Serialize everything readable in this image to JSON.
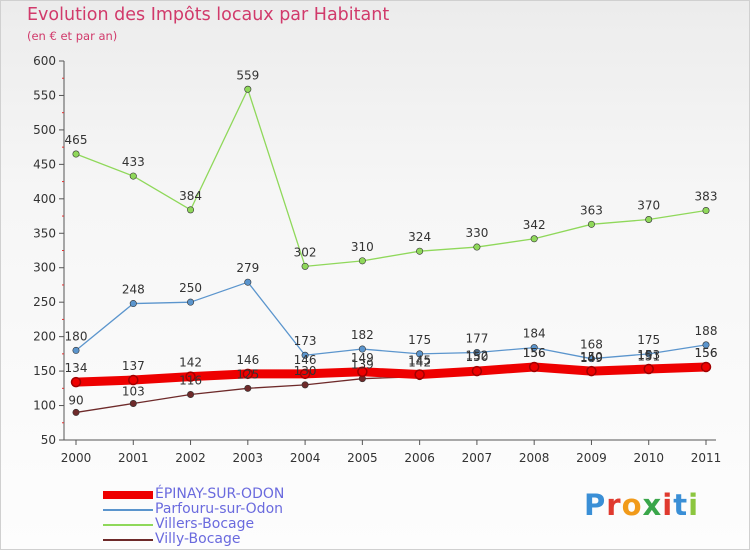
{
  "title": "Evolution des Impôts locaux par Habitant",
  "subtitle": "(en € et par an)",
  "logo": {
    "text": "Proxiti",
    "letter_colors": [
      "#3a8fd6",
      "#e03a2f",
      "#f19a1a",
      "#3aa64a",
      "#e03a2f",
      "#3a8fd6",
      "#8cc63f"
    ]
  },
  "chart_data": {
    "type": "line",
    "x": [
      "2000",
      "2001",
      "2002",
      "2003",
      "2004",
      "2005",
      "2006",
      "2007",
      "2008",
      "2009",
      "2010",
      "2011"
    ],
    "ylim": [
      50,
      600
    ],
    "yticks": [
      50,
      100,
      150,
      200,
      250,
      300,
      350,
      400,
      450,
      500,
      550,
      600
    ],
    "grid": false,
    "series": [
      {
        "name": "Villers-Bocage",
        "color": "#8fd85a",
        "values": [
          465,
          433,
          384,
          559,
          302,
          310,
          324,
          330,
          342,
          363,
          370,
          383
        ],
        "labels": [
          "465",
          "433",
          "384",
          "559",
          "302",
          "310",
          "324",
          "330",
          "342",
          "363",
          "370",
          "383"
        ]
      },
      {
        "name": "Parfouru-sur-Odon",
        "color": "#5b95cd",
        "values": [
          180,
          248,
          250,
          279,
          173,
          182,
          175,
          177,
          184,
          168,
          175,
          188
        ],
        "labels": [
          "180",
          "248",
          "250",
          "279",
          "173",
          "182",
          "175",
          "177",
          "184",
          "168",
          "175",
          "188"
        ]
      },
      {
        "name": "Villy-Bocage",
        "color": "#6e2a2a",
        "values": [
          90,
          103,
          116,
          125,
          130,
          139,
          142,
          152,
          156,
          149,
          151,
          156
        ],
        "labels": [
          "90",
          "103",
          "116",
          "125",
          "130",
          "139",
          "142",
          "152",
          "156",
          "149",
          "151",
          "156"
        ]
      },
      {
        "name": "ÉPINAY-SUR-ODON",
        "color": "#ee0000",
        "values": [
          134,
          137,
          142,
          146,
          146,
          149,
          145,
          150,
          156,
          150,
          153,
          156
        ],
        "labels": [
          "134",
          "137",
          "142",
          "146",
          "146",
          "149",
          "145",
          "150",
          "156",
          "150",
          "153",
          "156"
        ]
      }
    ],
    "legend": [
      "ÉPINAY-SUR-ODON",
      "Parfouru-sur-Odon",
      "Villers-Bocage",
      "Villy-Bocage"
    ],
    "legend_colors": [
      "#ee0000",
      "#5b95cd",
      "#8fd85a",
      "#6e2a2a"
    ],
    "legend_position": "bottom-left"
  }
}
